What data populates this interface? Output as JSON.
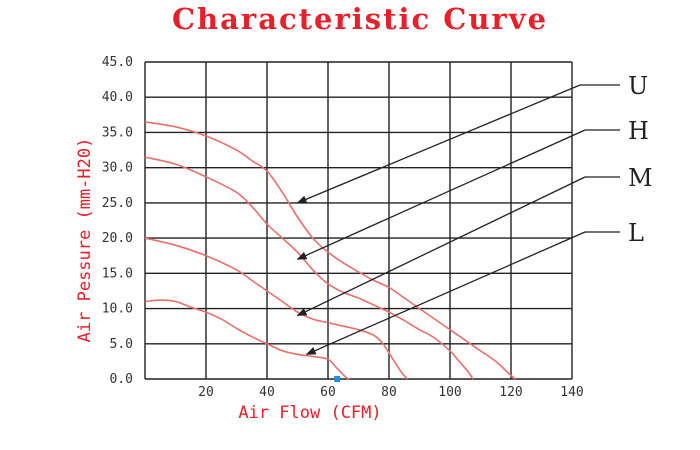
{
  "chart_data": {
    "type": "line",
    "title": "Characteristic Curve",
    "xlabel": "Air Flow (CFM)",
    "ylabel": "Air Pessure (mm-H20)",
    "xlim": [
      0,
      140
    ],
    "ylim": [
      0,
      45
    ],
    "x_ticks": [
      "20",
      "40",
      "60",
      "80",
      "100",
      "120",
      "140"
    ],
    "y_ticks": [
      "0.0",
      "5.0",
      "10.0",
      "15.0",
      "20.0",
      "25.0",
      "30.0",
      "35.0",
      "40.0",
      "45.0"
    ],
    "grid": true,
    "legend": "right",
    "colors": {
      "curve": "#e8706a",
      "text_red": "#e8202a",
      "grid": "#222222",
      "arrow": "#222222",
      "marker": "#1e8fe0"
    },
    "series": [
      {
        "name": "U",
        "points": [
          [
            0,
            36.5
          ],
          [
            10,
            35.8
          ],
          [
            20,
            34.5
          ],
          [
            30,
            32.5
          ],
          [
            35,
            31
          ],
          [
            40,
            29.5
          ],
          [
            45,
            26.5
          ],
          [
            50,
            23
          ],
          [
            55,
            20
          ],
          [
            60,
            18
          ],
          [
            65,
            16.5
          ],
          [
            70,
            15.2
          ],
          [
            75,
            14
          ],
          [
            80,
            13
          ],
          [
            85,
            11.5
          ],
          [
            90,
            10
          ],
          [
            95,
            8.5
          ],
          [
            100,
            7
          ],
          [
            105,
            5.5
          ],
          [
            110,
            4
          ],
          [
            115,
            2.5
          ],
          [
            120,
            0.5
          ],
          [
            121.5,
            0
          ]
        ]
      },
      {
        "name": "H",
        "points": [
          [
            0,
            31.5
          ],
          [
            10,
            30.5
          ],
          [
            20,
            28.7
          ],
          [
            30,
            26.5
          ],
          [
            35,
            24.5
          ],
          [
            40,
            22
          ],
          [
            45,
            20
          ],
          [
            50,
            18
          ],
          [
            55,
            15.5
          ],
          [
            60,
            13.5
          ],
          [
            65,
            12.3
          ],
          [
            70,
            11.5
          ],
          [
            75,
            10.5
          ],
          [
            80,
            9.5
          ],
          [
            85,
            8.3
          ],
          [
            90,
            7
          ],
          [
            95,
            5.8
          ],
          [
            100,
            4
          ],
          [
            103,
            2.5
          ],
          [
            106,
            1
          ],
          [
            107.5,
            0
          ]
        ]
      },
      {
        "name": "M",
        "points": [
          [
            0,
            20
          ],
          [
            10,
            19
          ],
          [
            20,
            17.5
          ],
          [
            30,
            15.5
          ],
          [
            35,
            14
          ],
          [
            40,
            12.5
          ],
          [
            45,
            11
          ],
          [
            50,
            9.5
          ],
          [
            55,
            8.5
          ],
          [
            60,
            8
          ],
          [
            65,
            7.5
          ],
          [
            70,
            7
          ],
          [
            75,
            6.2
          ],
          [
            78,
            5
          ],
          [
            81,
            3
          ],
          [
            84,
            1
          ],
          [
            86,
            0
          ]
        ]
      },
      {
        "name": "L",
        "points": [
          [
            0,
            11
          ],
          [
            5,
            11.2
          ],
          [
            10,
            11
          ],
          [
            15,
            10.2
          ],
          [
            20,
            9.5
          ],
          [
            25,
            8.5
          ],
          [
            30,
            7.2
          ],
          [
            35,
            6
          ],
          [
            40,
            5
          ],
          [
            45,
            4
          ],
          [
            50,
            3.5
          ],
          [
            55,
            3.2
          ],
          [
            60,
            2.8
          ],
          [
            63,
            1.5
          ],
          [
            66,
            0.2
          ],
          [
            67,
            0
          ]
        ]
      }
    ],
    "arrows": [
      {
        "series": "U",
        "target": [
          50,
          25
        ]
      },
      {
        "series": "H",
        "target": [
          50,
          17
        ]
      },
      {
        "series": "M",
        "target": [
          50,
          9
        ]
      },
      {
        "series": "L",
        "target": [
          53,
          3.5
        ]
      }
    ],
    "marker": {
      "x": 63,
      "y": 0
    }
  }
}
